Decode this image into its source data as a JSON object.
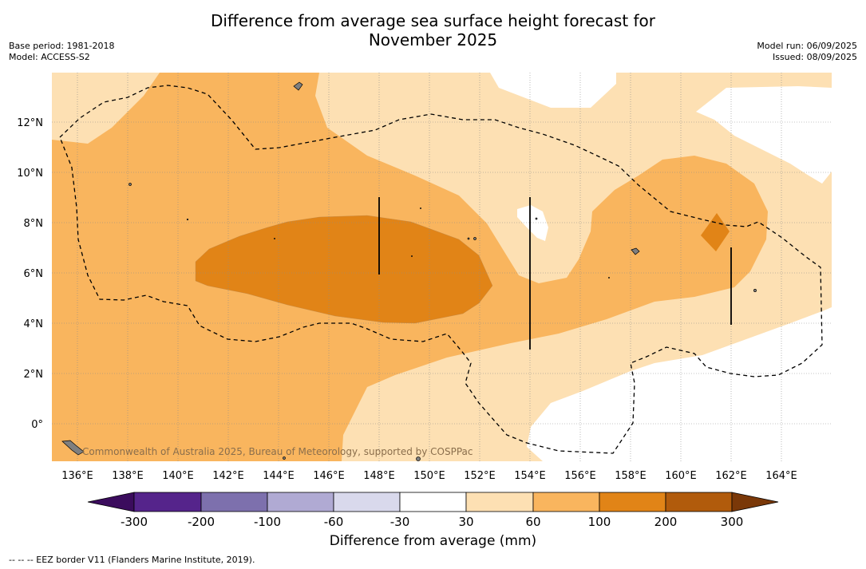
{
  "title": {
    "line1": "Difference from average sea surface height forecast for",
    "line2": "November 2025"
  },
  "meta_left": {
    "base_period": "Base period: 1981-2018",
    "model": "Model: ACCESS-S2"
  },
  "meta_right": {
    "model_run": "Model run: 06/09/2025",
    "issued": "Issued: 08/09/2025"
  },
  "map": {
    "lon_range": [
      135,
      166
    ],
    "lat_range": [
      -1.5,
      14
    ],
    "lon_ticks": [
      "136°E",
      "138°E",
      "140°E",
      "142°E",
      "144°E",
      "146°E",
      "148°E",
      "150°E",
      "152°E",
      "154°E",
      "156°E",
      "158°E",
      "160°E",
      "162°E",
      "164°E"
    ],
    "lat_ticks": [
      "12°N",
      "10°N",
      "8°N",
      "6°N",
      "4°N",
      "2°N",
      "0°"
    ],
    "watermark": "Commonwealth of Australia 2025, Bureau of Meteorology, supported by COSPPac",
    "colors": {
      "band_30_60": "#fde0b3",
      "band_60_100": "#f9b55e",
      "band_100_200": "#e18417",
      "land": "#7f7f7f",
      "eez_line": "#000000"
    }
  },
  "colorbar": {
    "title": "Difference from average (mm)",
    "labels": [
      "-300",
      "-200",
      "-100",
      "-60",
      "-30",
      "30",
      "60",
      "100",
      "200",
      "300"
    ],
    "colors": [
      "#3b0c5d",
      "#55248b",
      "#7d70ad",
      "#b0aad3",
      "#d9d9ec",
      "#ffffff",
      "#fde0b3",
      "#f9b55e",
      "#e18417",
      "#b15b0c",
      "#7a3808"
    ]
  },
  "footnote": "--  --  -- EEZ border V11 (Flanders Marine Institute, 2019)."
}
